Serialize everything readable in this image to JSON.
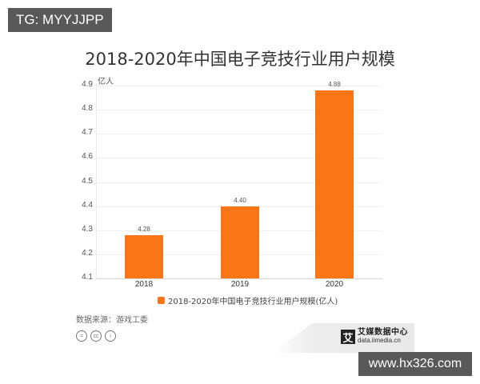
{
  "watermark_top": "TG: MYYJJPP",
  "watermark_bottom": "www.hx326.com",
  "colors": {
    "bar": "#f97516",
    "badge_bg": "#595959"
  },
  "chart_data": {
    "type": "bar",
    "title": "2018-2020年中国电子竞技行业用户规模",
    "ylabel": "亿人",
    "xlabel": "",
    "categories": [
      "2018",
      "2019",
      "2020"
    ],
    "values": [
      4.28,
      4.4,
      4.88
    ],
    "value_labels": [
      "4.28",
      "4.40",
      "4.88"
    ],
    "ylim": [
      4.1,
      4.9
    ],
    "yticks": [
      "4.9",
      "4.8",
      "4.7",
      "4.6",
      "4.5",
      "4.4",
      "4.3",
      "4.2",
      "4.1"
    ],
    "legend": [
      "2018-2020年中国电子竞技行业用户规模(亿人)"
    ],
    "legend_position": "bottom",
    "grid": true
  },
  "footer": {
    "source": "数据来源：游戏工委",
    "cc_icons": [
      "=",
      "cc",
      "i"
    ],
    "brand_logo_char": "艾",
    "brand_name": "艾媒数据中心",
    "brand_url": "data.iimedia.cn"
  }
}
